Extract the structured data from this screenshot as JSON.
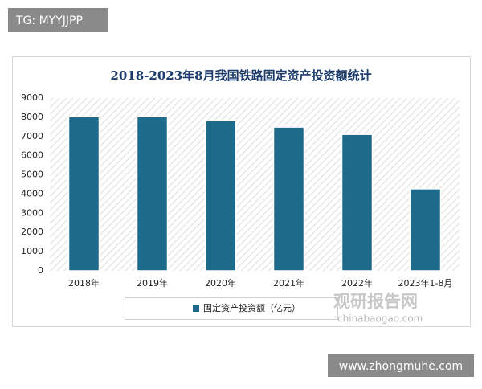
{
  "chart_data": {
    "type": "bar",
    "title": "2018-2023年8月我国铁路固定资产投资额统计",
    "categories": [
      "2018年",
      "2019年",
      "2020年",
      "2021年",
      "2022年",
      "2023年1-8月"
    ],
    "series": [
      {
        "name": "固定资产投资额（亿元）",
        "color": "#1d6a8a",
        "values": [
          8028,
          8029,
          7819,
          7489,
          7109,
          4273
        ]
      }
    ],
    "ylim": [
      0,
      9000
    ],
    "yticks": [
      0,
      1000,
      2000,
      3000,
      4000,
      5000,
      6000,
      7000,
      8000,
      9000
    ],
    "grid": false,
    "legend": "bottom"
  },
  "watermarks": {
    "top_left": "TG: MYYJJPP",
    "bottom_right": "www.zhongmuhe.com",
    "logo": "观研报告网",
    "logo_url": "chinabaogao.com"
  }
}
